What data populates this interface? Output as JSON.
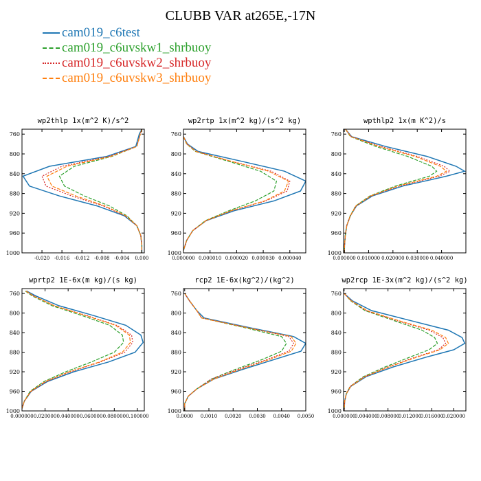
{
  "title": "CLUBB VAR at265E,-17N",
  "legend": [
    {
      "name": "cam019_c6test",
      "color": "#1f77b4",
      "dash": "solid"
    },
    {
      "name": "cam019_c6uvskw1_shrbuoy",
      "color": "#2ca02c",
      "dash": "dash"
    },
    {
      "name": "cam019_c6uvskw2_shrbuoy",
      "color": "#d62728",
      "dash": "dot"
    },
    {
      "name": "cam019_c6uvskw3_shrbuoy",
      "color": "#ff7f0e",
      "dash": "dash"
    }
  ],
  "chart_data": [
    {
      "type": "line",
      "title": "wp2thlp  1x(m^2 K)/s^2",
      "xlim": [
        -0.024,
        0.0005
      ],
      "ylim": [
        750,
        1000
      ],
      "y_inverted": true,
      "xticks": [
        -0.02,
        -0.016,
        -0.012,
        -0.008,
        -0.004,
        0.0
      ],
      "xtick_labels": [
        "-0.020",
        "-0.016",
        "-0.012",
        "-0.008",
        "-0.004",
        "0.000"
      ],
      "yticks": [
        760,
        800,
        840,
        880,
        920,
        960,
        1000
      ],
      "y": [
        750,
        760,
        785,
        805,
        825,
        845,
        865,
        885,
        905,
        925,
        945,
        965,
        985,
        1000
      ],
      "series": [
        {
          "name": "cam019_c6test",
          "x": [
            0.0,
            -0.0005,
            -0.0012,
            -0.007,
            -0.0185,
            -0.0238,
            -0.0225,
            -0.0165,
            -0.009,
            -0.0035,
            -0.001,
            -0.0002,
            0.0,
            0.0
          ]
        },
        {
          "name": "cam019_c6uvskw1_shrbuoy",
          "x": [
            0.0,
            -0.0003,
            -0.001,
            -0.006,
            -0.0135,
            -0.0165,
            -0.0155,
            -0.0115,
            -0.0065,
            -0.003,
            -0.001,
            -0.0002,
            0.0,
            0.0
          ]
        },
        {
          "name": "cam019_c6uvskw2_shrbuoy",
          "x": [
            0.0,
            -0.0003,
            -0.001,
            -0.0065,
            -0.016,
            -0.02,
            -0.0192,
            -0.014,
            -0.0078,
            -0.0033,
            -0.001,
            -0.0002,
            0.0,
            0.0
          ]
        },
        {
          "name": "cam019_c6uvskw3_shrbuoy",
          "x": [
            0.0,
            -0.0003,
            -0.001,
            -0.0062,
            -0.015,
            -0.019,
            -0.018,
            -0.0132,
            -0.0074,
            -0.0032,
            -0.001,
            -0.0002,
            0.0,
            0.0
          ]
        }
      ]
    },
    {
      "type": "line",
      "title": "wp2rtp  1x(m^2 kg)/(s^2 kg)",
      "xlim": [
        0,
        4.6e-05
      ],
      "ylim": [
        750,
        1000
      ],
      "y_inverted": true,
      "xticks": [
        0,
        1e-05,
        2e-05,
        3e-05,
        4e-05
      ],
      "xtick_labels": [
        "0.000000",
        "0.000010",
        "0.000020",
        "0.000030",
        "0.000040"
      ],
      "yticks": [
        760,
        800,
        840,
        880,
        920,
        960,
        1000
      ],
      "y": [
        765,
        780,
        795,
        815,
        835,
        855,
        875,
        895,
        915,
        935,
        955,
        975,
        995
      ],
      "series": [
        {
          "name": "cam019_c6test",
          "x": [
            0.0,
            1.5e-06,
            5.5e-06,
            2.2e-05,
            3.8e-05,
            4.6e-05,
            4.4e-05,
            3.4e-05,
            1.9e-05,
            8.5e-06,
            3.5e-06,
            1.2e-06,
            0.0
          ]
        },
        {
          "name": "cam019_c6uvskw1_shrbuoy",
          "x": [
            0.0,
            1.2e-06,
            4.5e-06,
            1.7e-05,
            2.9e-05,
            3.5e-05,
            3.4e-05,
            2.7e-05,
            1.7e-05,
            8.2e-06,
            3.5e-06,
            1.2e-06,
            0.0
          ]
        },
        {
          "name": "cam019_c6uvskw2_shrbuoy",
          "x": [
            0.0,
            1.3e-06,
            4.8e-06,
            1.8e-05,
            3.3e-05,
            4e-05,
            3.9e-05,
            3.1e-05,
            1.8e-05,
            8.5e-06,
            3.5e-06,
            1.2e-06,
            0.0
          ]
        },
        {
          "name": "cam019_c6uvskw3_shrbuoy",
          "x": [
            0.0,
            1.3e-06,
            4.7e-06,
            1.8e-05,
            3.2e-05,
            3.95e-05,
            3.8e-05,
            3.05e-05,
            1.78e-05,
            8.4e-06,
            3.5e-06,
            1.2e-06,
            0.0
          ]
        }
      ]
    },
    {
      "type": "line",
      "title": "wpthlp2  1x(m K^2)/s",
      "xlim": [
        -0.0003,
        0.05
      ],
      "ylim": [
        750,
        1000
      ],
      "y_inverted": true,
      "xticks": [
        0,
        0.01,
        0.02,
        0.03,
        0.04
      ],
      "xtick_labels": [
        "0.000000",
        "0.010000",
        "0.020000",
        "0.030000",
        "0.040000"
      ],
      "yticks": [
        760,
        800,
        840,
        880,
        920,
        960,
        1000
      ],
      "y": [
        750,
        765,
        785,
        805,
        825,
        835,
        845,
        865,
        885,
        905,
        925,
        945,
        965,
        985,
        1000
      ],
      "series": [
        {
          "name": "cam019_c6test",
          "x": [
            0.0005,
            0.003,
            0.017,
            0.034,
            0.046,
            0.0495,
            0.042,
            0.024,
            0.0115,
            0.005,
            0.0025,
            0.001,
            0.0004,
            0.0001,
            0.0
          ]
        },
        {
          "name": "cam019_c6uvskw1_shrbuoy",
          "x": [
            0.0005,
            0.0025,
            0.013,
            0.026,
            0.036,
            0.038,
            0.035,
            0.021,
            0.0105,
            0.0047,
            0.0024,
            0.001,
            0.0004,
            0.0001,
            0.0
          ]
        },
        {
          "name": "cam019_c6uvskw2_shrbuoy",
          "x": [
            0.0005,
            0.0028,
            0.015,
            0.03,
            0.041,
            0.0435,
            0.039,
            0.0225,
            0.011,
            0.0049,
            0.0025,
            0.001,
            0.0004,
            0.0001,
            0.0
          ]
        },
        {
          "name": "cam019_c6uvskw3_shrbuoy",
          "x": [
            0.0005,
            0.0027,
            0.0143,
            0.029,
            0.0395,
            0.042,
            0.038,
            0.022,
            0.0108,
            0.0048,
            0.0025,
            0.001,
            0.0004,
            0.0001,
            0.0
          ]
        }
      ]
    },
    {
      "type": "line",
      "title": "wprtp2  1E-6x(m kg)/(s kg)",
      "xlim": [
        0,
        0.106
      ],
      "ylim": [
        750,
        1000
      ],
      "y_inverted": true,
      "xticks": [
        0,
        0.02,
        0.04,
        0.06,
        0.08,
        0.1
      ],
      "xtick_labels": [
        "0.000000",
        "0.020000",
        "0.040000",
        "0.060000",
        "0.080000",
        "0.100000"
      ],
      "yticks": [
        760,
        800,
        840,
        880,
        920,
        960,
        1000
      ],
      "y": [
        755,
        765,
        785,
        805,
        825,
        845,
        860,
        880,
        900,
        920,
        940,
        960,
        980,
        995
      ],
      "series": [
        {
          "name": "cam019_c6test",
          "x": [
            0.004,
            0.012,
            0.032,
            0.062,
            0.09,
            0.103,
            0.105,
            0.098,
            0.075,
            0.045,
            0.022,
            0.008,
            0.002,
            0.0
          ]
        },
        {
          "name": "cam019_c6uvskw1_shrbuoy",
          "x": [
            0.003,
            0.009,
            0.026,
            0.052,
            0.076,
            0.087,
            0.088,
            0.08,
            0.06,
            0.038,
            0.019,
            0.007,
            0.002,
            0.0
          ]
        },
        {
          "name": "cam019_c6uvskw2_shrbuoy",
          "x": [
            0.0035,
            0.01,
            0.028,
            0.056,
            0.082,
            0.095,
            0.096,
            0.089,
            0.068,
            0.042,
            0.021,
            0.008,
            0.002,
            0.0
          ]
        },
        {
          "name": "cam019_c6uvskw3_shrbuoy",
          "x": [
            0.0035,
            0.01,
            0.028,
            0.055,
            0.081,
            0.093,
            0.094,
            0.087,
            0.067,
            0.041,
            0.02,
            0.0075,
            0.002,
            0.0
          ]
        }
      ]
    },
    {
      "type": "line",
      "title": "rcp2  1E-6x(kg^2)/(kg^2)",
      "xlim": [
        -5e-05,
        0.005
      ],
      "ylim": [
        750,
        1000
      ],
      "y_inverted": true,
      "xticks": [
        0,
        0.001,
        0.002,
        0.003,
        0.004,
        0.005
      ],
      "xtick_labels": [
        "0.0000",
        "0.0010",
        "0.0020",
        "0.0030",
        "0.0040",
        "0.0050"
      ],
      "yticks": [
        760,
        800,
        840,
        880,
        920,
        960,
        1000
      ],
      "y": [
        760,
        775,
        795,
        810,
        830,
        848,
        862,
        878,
        895,
        915,
        935,
        955,
        970,
        985,
        1000
      ],
      "series": [
        {
          "name": "cam019_c6test",
          "x": [
            0.0,
            0.0002,
            0.0005,
            0.0008,
            0.0027,
            0.0045,
            0.005,
            0.0048,
            0.0037,
            0.0024,
            0.0012,
            0.0005,
            0.00015,
            0.0,
            0.0
          ]
        },
        {
          "name": "cam019_c6uvskw1_shrbuoy",
          "x": [
            0.0,
            0.0002,
            0.0005,
            0.0007,
            0.0025,
            0.004,
            0.0042,
            0.004,
            0.0032,
            0.0021,
            0.0011,
            0.0005,
            0.00015,
            0.0,
            0.0
          ]
        },
        {
          "name": "cam019_c6uvskw2_shrbuoy",
          "x": [
            0.0,
            0.0002,
            0.0005,
            0.0007,
            0.0026,
            0.0043,
            0.0045,
            0.0043,
            0.0034,
            0.0022,
            0.0011,
            0.0005,
            0.00015,
            0.0,
            0.0
          ]
        },
        {
          "name": "cam019_c6uvskw3_shrbuoy",
          "x": [
            0.0,
            0.0002,
            0.0005,
            0.0007,
            0.0026,
            0.0044,
            0.0046,
            0.0044,
            0.0035,
            0.0023,
            0.0012,
            0.0005,
            0.00015,
            0.0,
            0.0
          ]
        }
      ]
    },
    {
      "type": "line",
      "title": "wp2rcp  1E-3x(m^2 kg)/(s^2 kg)",
      "xlim": [
        -0.0001,
        0.0222
      ],
      "ylim": [
        750,
        1000
      ],
      "y_inverted": true,
      "xticks": [
        0,
        0.004,
        0.008,
        0.012,
        0.016,
        0.02
      ],
      "xtick_labels": [
        "0.000000",
        "0.004000",
        "0.008000",
        "0.012000",
        "0.016000",
        "0.020000"
      ],
      "yticks": [
        760,
        800,
        840,
        880,
        920,
        960,
        1000
      ],
      "y": [
        760,
        775,
        795,
        815,
        835,
        850,
        862,
        875,
        890,
        910,
        930,
        950,
        965,
        980,
        1000
      ],
      "series": [
        {
          "name": "cam019_c6test",
          "x": [
            0.0,
            0.0015,
            0.005,
            0.012,
            0.019,
            0.0215,
            0.022,
            0.02,
            0.015,
            0.009,
            0.004,
            0.0012,
            0.0004,
            0.0001,
            0.0
          ]
        },
        {
          "name": "cam019_c6uvskw1_shrbuoy",
          "x": [
            0.0,
            0.0012,
            0.0038,
            0.009,
            0.0142,
            0.0165,
            0.017,
            0.0155,
            0.012,
            0.0075,
            0.0035,
            0.0011,
            0.0004,
            0.0001,
            0.0
          ]
        },
        {
          "name": "cam019_c6uvskw2_shrbuoy",
          "x": [
            0.0,
            0.0013,
            0.004,
            0.0095,
            0.0155,
            0.018,
            0.0185,
            0.0172,
            0.013,
            0.008,
            0.0037,
            0.0011,
            0.0004,
            0.0001,
            0.0
          ]
        },
        {
          "name": "cam019_c6uvskw3_shrbuoy",
          "x": [
            0.0,
            0.0013,
            0.0042,
            0.0098,
            0.016,
            0.0185,
            0.019,
            0.0175,
            0.0133,
            0.0082,
            0.0038,
            0.0012,
            0.0004,
            0.0001,
            0.0
          ]
        }
      ]
    }
  ]
}
